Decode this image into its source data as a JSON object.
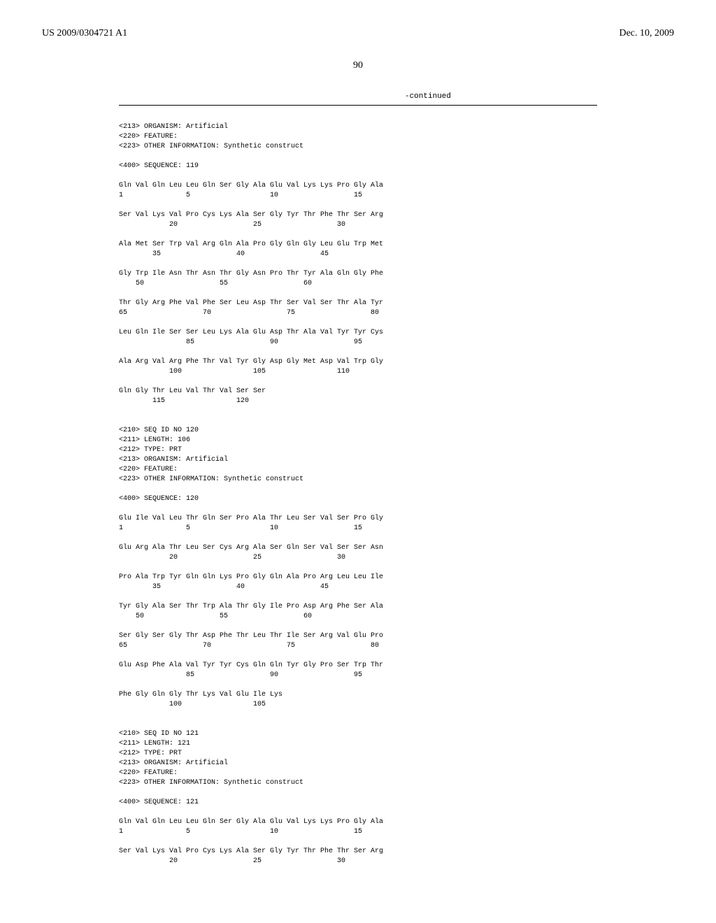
{
  "header": {
    "pub_number": "US 2009/0304721 A1",
    "pub_date": "Dec. 10, 2009"
  },
  "page_number": "90",
  "continued_label": "-continued",
  "blocks": {
    "intro119": "<213> ORGANISM: Artificial\n<220> FEATURE:\n<223> OTHER INFORMATION: Synthetic construct\n\n<400> SEQUENCE: 119",
    "seq119_l1": "Gln Val Gln Leu Leu Gln Ser Gly Ala Glu Val Lys Lys Pro Gly Ala",
    "seq119_n1": "1               5                   10                  15",
    "seq119_l2": "Ser Val Lys Val Pro Cys Lys Ala Ser Gly Tyr Thr Phe Thr Ser Arg",
    "seq119_n2": "            20                  25                  30",
    "seq119_l3": "Ala Met Ser Trp Val Arg Gln Ala Pro Gly Gln Gly Leu Glu Trp Met",
    "seq119_n3": "        35                  40                  45",
    "seq119_l4": "Gly Trp Ile Asn Thr Asn Thr Gly Asn Pro Thr Tyr Ala Gln Gly Phe",
    "seq119_n4": "    50                  55                  60",
    "seq119_l5": "Thr Gly Arg Phe Val Phe Ser Leu Asp Thr Ser Val Ser Thr Ala Tyr",
    "seq119_n5": "65                  70                  75                  80",
    "seq119_l6": "Leu Gln Ile Ser Ser Leu Lys Ala Glu Asp Thr Ala Val Tyr Tyr Cys",
    "seq119_n6": "                85                  90                  95",
    "seq119_l7": "Ala Arg Val Arg Phe Thr Val Tyr Gly Asp Gly Met Asp Val Trp Gly",
    "seq119_n7": "            100                 105                 110",
    "seq119_l8": "Gln Gly Thr Leu Val Thr Val Ser Ser",
    "seq119_n8": "        115                 120",
    "intro120": "<210> SEQ ID NO 120\n<211> LENGTH: 106\n<212> TYPE: PRT\n<213> ORGANISM: Artificial\n<220> FEATURE:\n<223> OTHER INFORMATION: Synthetic construct\n\n<400> SEQUENCE: 120",
    "seq120_l1": "Glu Ile Val Leu Thr Gln Ser Pro Ala Thr Leu Ser Val Ser Pro Gly",
    "seq120_n1": "1               5                   10                  15",
    "seq120_l2": "Glu Arg Ala Thr Leu Ser Cys Arg Ala Ser Gln Ser Val Ser Ser Asn",
    "seq120_n2": "            20                  25                  30",
    "seq120_l3": "Pro Ala Trp Tyr Gln Gln Lys Pro Gly Gln Ala Pro Arg Leu Leu Ile",
    "seq120_n3": "        35                  40                  45",
    "seq120_l4": "Tyr Gly Ala Ser Thr Trp Ala Thr Gly Ile Pro Asp Arg Phe Ser Ala",
    "seq120_n4": "    50                  55                  60",
    "seq120_l5": "Ser Gly Ser Gly Thr Asp Phe Thr Leu Thr Ile Ser Arg Val Glu Pro",
    "seq120_n5": "65                  70                  75                  80",
    "seq120_l6": "Glu Asp Phe Ala Val Tyr Tyr Cys Gln Gln Tyr Gly Pro Ser Trp Thr",
    "seq120_n6": "                85                  90                  95",
    "seq120_l7": "Phe Gly Gln Gly Thr Lys Val Glu Ile Lys",
    "seq120_n7": "            100                 105",
    "intro121": "<210> SEQ ID NO 121\n<211> LENGTH: 121\n<212> TYPE: PRT\n<213> ORGANISM: Artificial\n<220> FEATURE:\n<223> OTHER INFORMATION: Synthetic construct\n\n<400> SEQUENCE: 121",
    "seq121_l1": "Gln Val Gln Leu Leu Gln Ser Gly Ala Glu Val Lys Lys Pro Gly Ala",
    "seq121_n1": "1               5                   10                  15",
    "seq121_l2": "Ser Val Lys Val Pro Cys Lys Ala Ser Gly Tyr Thr Phe Thr Ser Arg",
    "seq121_n2": "            20                  25                  30"
  }
}
